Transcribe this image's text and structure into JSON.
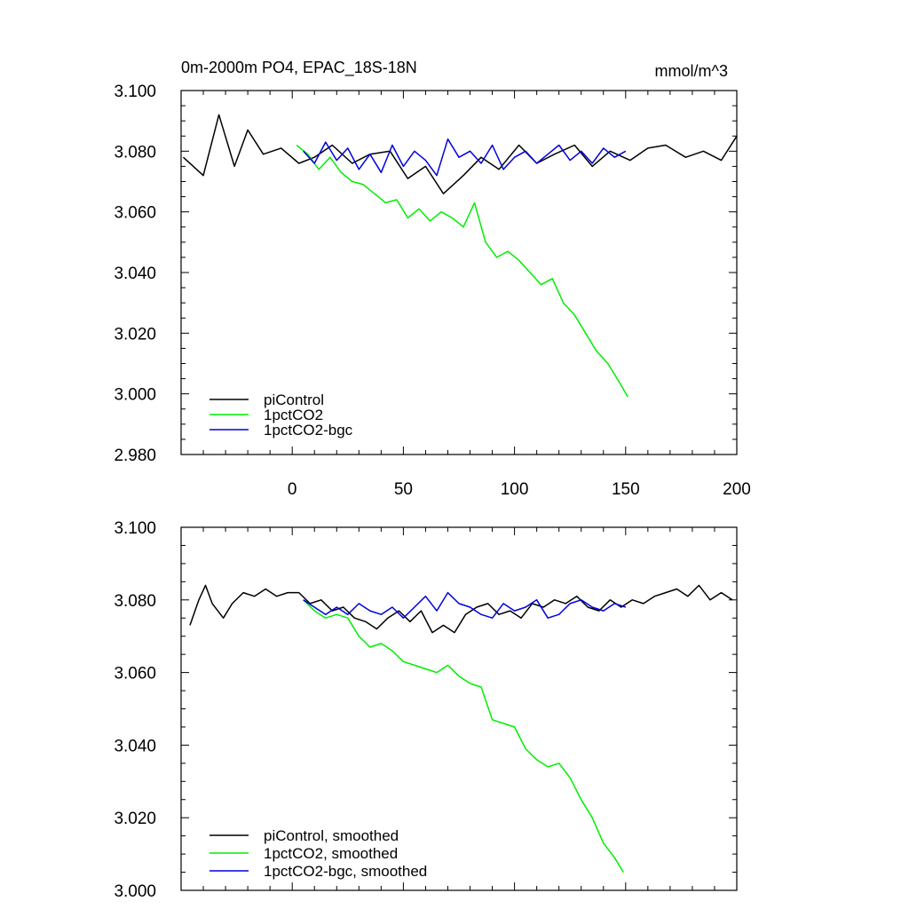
{
  "chart_data": [
    {
      "type": "line",
      "title": "0m-2000m PO4, EPAC_18S-18N",
      "units": "mmol/m^3",
      "xlim": [
        -50,
        200
      ],
      "ylim": [
        2.98,
        3.1
      ],
      "xticks": [
        0,
        50,
        100,
        150,
        200
      ],
      "xtick_labels": [
        "0",
        "50",
        "100",
        "150",
        "200"
      ],
      "yticks": [
        2.98,
        3.0,
        3.02,
        3.04,
        3.06,
        3.08,
        3.1
      ],
      "ytick_labels": [
        "2.980",
        "3.000",
        "3.020",
        "3.040",
        "3.060",
        "3.080",
        "3.100"
      ],
      "grid": false,
      "legend_position": "bottom-left",
      "series": [
        {
          "name": "piControl",
          "color": "#000000",
          "x": [
            -49,
            -40,
            -33,
            -26,
            -20,
            -13,
            -5,
            3,
            10,
            18,
            27,
            35,
            44,
            52,
            60,
            68,
            77,
            85,
            93,
            102,
            110,
            118,
            127,
            135,
            143,
            152,
            160,
            168,
            177,
            185,
            193,
            200
          ],
          "y": [
            3.078,
            3.072,
            3.092,
            3.075,
            3.087,
            3.079,
            3.081,
            3.076,
            3.078,
            3.082,
            3.076,
            3.079,
            3.08,
            3.071,
            3.075,
            3.066,
            3.072,
            3.078,
            3.074,
            3.082,
            3.076,
            3.079,
            3.082,
            3.075,
            3.08,
            3.077,
            3.081,
            3.082,
            3.078,
            3.08,
            3.077,
            3.085
          ]
        },
        {
          "name": "1pctCO2",
          "color": "#00ee00",
          "x": [
            2,
            7,
            12,
            17,
            22,
            27,
            32,
            37,
            42,
            47,
            52,
            57,
            62,
            67,
            72,
            77,
            82,
            87,
            92,
            97,
            102,
            107,
            112,
            117,
            122,
            127,
            132,
            137,
            142,
            147,
            151
          ],
          "y": [
            3.082,
            3.079,
            3.074,
            3.078,
            3.073,
            3.07,
            3.069,
            3.066,
            3.063,
            3.064,
            3.058,
            3.061,
            3.057,
            3.06,
            3.058,
            3.055,
            3.063,
            3.05,
            3.045,
            3.047,
            3.044,
            3.04,
            3.036,
            3.038,
            3.03,
            3.026,
            3.02,
            3.014,
            3.01,
            3.004,
            2.999
          ]
        },
        {
          "name": "1pctCO2-bgc",
          "color": "#0000dd",
          "x": [
            5,
            10,
            15,
            20,
            25,
            30,
            35,
            40,
            45,
            50,
            55,
            60,
            65,
            70,
            75,
            80,
            85,
            90,
            95,
            100,
            105,
            110,
            115,
            120,
            125,
            130,
            135,
            140,
            145,
            150
          ],
          "y": [
            3.08,
            3.076,
            3.083,
            3.077,
            3.081,
            3.074,
            3.079,
            3.073,
            3.082,
            3.075,
            3.08,
            3.077,
            3.072,
            3.084,
            3.078,
            3.08,
            3.076,
            3.082,
            3.074,
            3.078,
            3.08,
            3.076,
            3.079,
            3.082,
            3.077,
            3.08,
            3.076,
            3.081,
            3.078,
            3.08
          ]
        }
      ]
    },
    {
      "type": "line",
      "xlim": [
        -50,
        200
      ],
      "ylim": [
        3.0,
        3.1
      ],
      "xticks": [
        0,
        50,
        100,
        150,
        200
      ],
      "yticks": [
        3.0,
        3.02,
        3.04,
        3.06,
        3.08,
        3.1
      ],
      "ytick_labels": [
        "3.000",
        "3.020",
        "3.040",
        "3.060",
        "3.080",
        "3.100"
      ],
      "grid": false,
      "legend_position": "bottom-left",
      "series": [
        {
          "name": "piControl, smoothed",
          "color": "#000000",
          "x": [
            -46,
            -42,
            -39,
            -36,
            -31,
            -27,
            -22,
            -17,
            -12,
            -7,
            -2,
            3,
            8,
            13,
            18,
            23,
            28,
            33,
            38,
            43,
            48,
            53,
            58,
            63,
            68,
            73,
            78,
            83,
            88,
            93,
            98,
            103,
            108,
            113,
            118,
            123,
            128,
            133,
            138,
            143,
            148,
            153,
            158,
            163,
            168,
            173,
            178,
            183,
            188,
            193,
            198
          ],
          "y": [
            3.073,
            3.08,
            3.084,
            3.079,
            3.075,
            3.079,
            3.082,
            3.081,
            3.083,
            3.081,
            3.082,
            3.082,
            3.079,
            3.08,
            3.077,
            3.078,
            3.075,
            3.074,
            3.072,
            3.075,
            3.077,
            3.074,
            3.077,
            3.071,
            3.073,
            3.071,
            3.076,
            3.078,
            3.079,
            3.076,
            3.077,
            3.075,
            3.079,
            3.078,
            3.08,
            3.079,
            3.081,
            3.078,
            3.077,
            3.08,
            3.078,
            3.08,
            3.079,
            3.081,
            3.082,
            3.083,
            3.081,
            3.084,
            3.08,
            3.082,
            3.08
          ]
        },
        {
          "name": "1pctCO2, smoothed",
          "color": "#00ee00",
          "x": [
            5,
            10,
            15,
            20,
            25,
            30,
            35,
            40,
            45,
            50,
            55,
            60,
            65,
            70,
            75,
            80,
            85,
            90,
            95,
            100,
            105,
            110,
            115,
            120,
            125,
            130,
            135,
            140,
            145,
            149
          ],
          "y": [
            3.08,
            3.077,
            3.075,
            3.076,
            3.075,
            3.07,
            3.067,
            3.068,
            3.066,
            3.063,
            3.062,
            3.061,
            3.06,
            3.062,
            3.059,
            3.057,
            3.056,
            3.047,
            3.046,
            3.045,
            3.039,
            3.036,
            3.034,
            3.035,
            3.031,
            3.025,
            3.02,
            3.013,
            3.009,
            3.005
          ]
        },
        {
          "name": "1pctCO2-bgc, smoothed",
          "color": "#0000dd",
          "x": [
            5,
            10,
            15,
            20,
            25,
            30,
            35,
            40,
            45,
            50,
            55,
            60,
            65,
            70,
            75,
            80,
            85,
            90,
            95,
            100,
            105,
            110,
            115,
            120,
            125,
            130,
            135,
            140,
            145,
            150
          ],
          "y": [
            3.08,
            3.078,
            3.076,
            3.078,
            3.076,
            3.079,
            3.077,
            3.076,
            3.078,
            3.075,
            3.078,
            3.081,
            3.077,
            3.082,
            3.079,
            3.078,
            3.076,
            3.075,
            3.079,
            3.077,
            3.078,
            3.08,
            3.075,
            3.076,
            3.079,
            3.08,
            3.078,
            3.077,
            3.079,
            3.078
          ]
        }
      ]
    }
  ]
}
